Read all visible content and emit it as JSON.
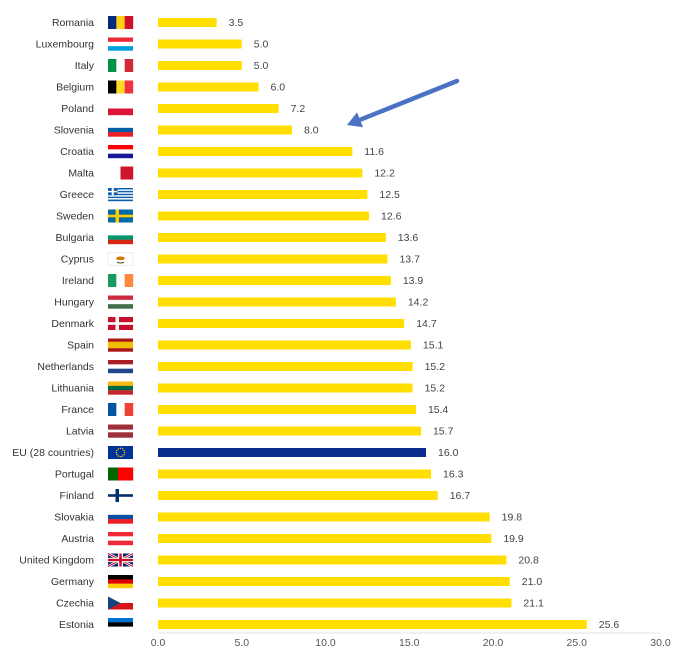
{
  "chart_data": {
    "type": "bar",
    "orientation": "horizontal",
    "title": "",
    "xlabel": "",
    "ylabel": "",
    "xlim": [
      0,
      30
    ],
    "xticks": [
      "0.0",
      "5.0",
      "10.0",
      "15.0",
      "20.0",
      "25.0",
      "30.0"
    ],
    "grid": false,
    "legend": "none",
    "colors": {
      "bar": "#FFDE00",
      "highlight": "#0A2C8F",
      "arrow": "#4A72C4"
    },
    "highlight_category": "EU (28 countries)",
    "arrow_points_to": "Slovenia",
    "categories": [
      "Romania",
      "Luxembourg",
      "Italy",
      "Belgium",
      "Poland",
      "Slovenia",
      "Croatia",
      "Malta",
      "Greece",
      "Sweden",
      "Bulgaria",
      "Cyprus",
      "Ireland",
      "Hungary",
      "Denmark",
      "Spain",
      "Netherlands",
      "Lithuania",
      "France",
      "Latvia",
      "EU (28 countries)",
      "Portugal",
      "Finland",
      "Slovakia",
      "Austria",
      "United Kingdom",
      "Germany",
      "Czechia",
      "Estonia"
    ],
    "values": [
      3.5,
      5.0,
      5.0,
      6.0,
      7.2,
      8.0,
      11.6,
      12.2,
      12.5,
      12.6,
      13.6,
      13.7,
      13.9,
      14.2,
      14.7,
      15.1,
      15.2,
      15.2,
      15.4,
      15.7,
      16.0,
      16.3,
      16.7,
      19.8,
      19.9,
      20.8,
      21.0,
      21.1,
      25.6
    ],
    "value_labels": [
      "3.5",
      "5.0",
      "5.0",
      "6.0",
      "7.2",
      "8.0",
      "11.6",
      "12.2",
      "12.5",
      "12.6",
      "13.6",
      "13.7",
      "13.9",
      "14.2",
      "14.7",
      "15.1",
      "15.2",
      "15.2",
      "15.4",
      "15.7",
      "16.0",
      "16.3",
      "16.7",
      "19.8",
      "19.9",
      "20.8",
      "21.0",
      "21.1",
      "25.6"
    ],
    "flags": [
      "romania-flag",
      "luxembourg-flag",
      "italy-flag",
      "belgium-flag",
      "poland-flag",
      "slovenia-flag",
      "croatia-flag",
      "malta-flag",
      "greece-flag",
      "sweden-flag",
      "bulgaria-flag",
      "cyprus-flag",
      "ireland-flag",
      "hungary-flag",
      "denmark-flag",
      "spain-flag",
      "netherlands-flag",
      "lithuania-flag",
      "france-flag",
      "latvia-flag",
      "eu-flag",
      "portugal-flag",
      "finland-flag",
      "slovakia-flag",
      "austria-flag",
      "united-kingdom-flag",
      "germany-flag",
      "czechia-flag",
      "estonia-flag"
    ]
  }
}
